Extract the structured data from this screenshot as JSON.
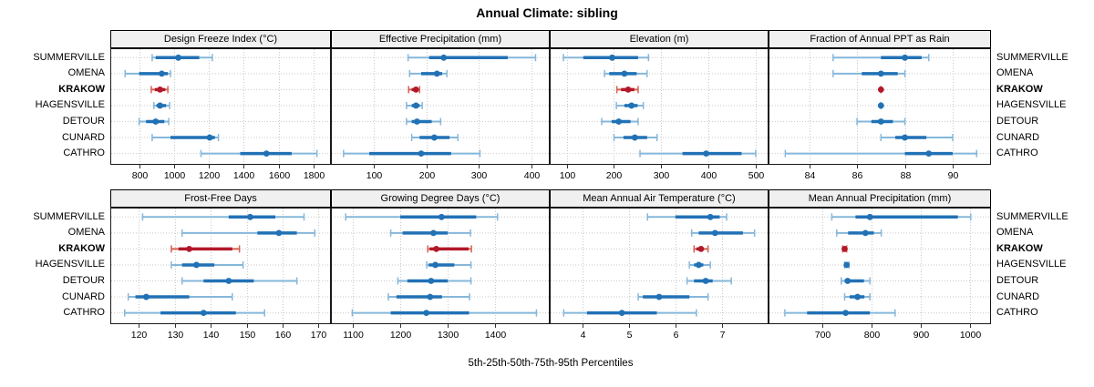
{
  "title": "Annual Climate: sibling",
  "caption": "5th-25th-50th-75th-95th Percentiles",
  "locations": [
    "SUMMERVILLE",
    "OMENA",
    "KRAKOW",
    "HAGENSVILLE",
    "DETOUR",
    "CUNARD",
    "CATHRO"
  ],
  "highlight_location": "KRAKOW",
  "colors": {
    "blue": "#2171b5",
    "blue_light": "#85b7da",
    "red": "#b2182b",
    "red_light": "#d6604d",
    "strip_bg": "#f0f0f0",
    "panel_border": "#1a1a1a",
    "grid": "#c9c9c9",
    "text": "#000000"
  },
  "chart_data": [
    {
      "type": "dotplot",
      "title": "Design Freeze Index (°C)",
      "row": 0,
      "col": 0,
      "percentiles": [
        5,
        25,
        50,
        75,
        95
      ],
      "xlim": [
        635,
        1900
      ],
      "ticks": [
        800,
        1000,
        1200,
        1400,
        1600,
        1800
      ],
      "series": [
        {
          "location": "SUMMERVILLE",
          "values": [
            875,
            895,
            1025,
            1145,
            1220
          ]
        },
        {
          "location": "OMENA",
          "values": [
            720,
            800,
            930,
            965,
            980
          ]
        },
        {
          "location": "KRAKOW",
          "values": [
            870,
            890,
            920,
            950,
            965
          ]
        },
        {
          "location": "HAGENSVILLE",
          "values": [
            885,
            900,
            920,
            955,
            975
          ]
        },
        {
          "location": "DETOUR",
          "values": [
            800,
            840,
            895,
            945,
            970
          ]
        },
        {
          "location": "CUNARD",
          "values": [
            875,
            980,
            1205,
            1235,
            1255
          ]
        },
        {
          "location": "CATHRO",
          "values": [
            1155,
            1380,
            1530,
            1675,
            1820
          ]
        }
      ]
    },
    {
      "type": "dotplot",
      "title": "Effective Precipitation (mm)",
      "row": 0,
      "col": 1,
      "percentiles": [
        5,
        25,
        50,
        75,
        95
      ],
      "xlim": [
        18,
        435
      ],
      "ticks": [
        100,
        200,
        300,
        400
      ],
      "series": [
        {
          "location": "SUMMERVILLE",
          "values": [
            165,
            205,
            233,
            355,
            408
          ]
        },
        {
          "location": "OMENA",
          "values": [
            168,
            190,
            220,
            230,
            239
          ]
        },
        {
          "location": "KRAKOW",
          "values": [
            166,
            172,
            180,
            184,
            187
          ]
        },
        {
          "location": "HAGENSVILLE",
          "values": [
            162,
            172,
            180,
            187,
            192
          ]
        },
        {
          "location": "DETOUR",
          "values": [
            162,
            172,
            182,
            210,
            227
          ]
        },
        {
          "location": "CUNARD",
          "values": [
            172,
            187,
            215,
            244,
            260
          ]
        },
        {
          "location": "CATHRO",
          "values": [
            42,
            91,
            190,
            247,
            302
          ]
        }
      ]
    },
    {
      "type": "dotplot",
      "title": "Elevation (m)",
      "row": 0,
      "col": 2,
      "percentiles": [
        5,
        25,
        50,
        75,
        95
      ],
      "xlim": [
        64,
        527
      ],
      "ticks": [
        100,
        200,
        300,
        400,
        500
      ],
      "series": [
        {
          "location": "SUMMERVILLE",
          "values": [
            93,
            135,
            196,
            251,
            273
          ]
        },
        {
          "location": "OMENA",
          "values": [
            180,
            190,
            222,
            248,
            270
          ]
        },
        {
          "location": "KRAKOW",
          "values": [
            206,
            215,
            230,
            243,
            251
          ]
        },
        {
          "location": "HAGENSVILLE",
          "values": [
            205,
            222,
            237,
            250,
            262
          ]
        },
        {
          "location": "DETOUR",
          "values": [
            174,
            195,
            210,
            235,
            251
          ]
        },
        {
          "location": "CUNARD",
          "values": [
            200,
            220,
            244,
            270,
            291
          ]
        },
        {
          "location": "CATHRO",
          "values": [
            255,
            345,
            395,
            470,
            500
          ]
        }
      ]
    },
    {
      "type": "dotplot",
      "title": "Fraction of Annual PPT as Rain",
      "row": 0,
      "col": 3,
      "percentiles": [
        5,
        25,
        50,
        75,
        95
      ],
      "xlim": [
        82.3,
        91.6
      ],
      "ticks": [
        84,
        86,
        88,
        90
      ],
      "series": [
        {
          "location": "SUMMERVILLE",
          "values": [
            85.0,
            87.0,
            88.0,
            88.7,
            89.0
          ]
        },
        {
          "location": "OMENA",
          "values": [
            85.0,
            86.2,
            87.0,
            87.7,
            88.0
          ]
        },
        {
          "location": "KRAKOW",
          "values": [
            87.0,
            87.0,
            87.0,
            87.0,
            87.0
          ]
        },
        {
          "location": "HAGENSVILLE",
          "values": [
            87.0,
            87.0,
            87.0,
            87.0,
            87.0
          ]
        },
        {
          "location": "DETOUR",
          "values": [
            86.0,
            86.6,
            87.0,
            87.5,
            88.0
          ]
        },
        {
          "location": "CUNARD",
          "values": [
            87.0,
            87.6,
            88.0,
            88.9,
            90.0
          ]
        },
        {
          "location": "CATHRO",
          "values": [
            83.0,
            88.0,
            89.0,
            90.0,
            91.0
          ]
        }
      ]
    },
    {
      "type": "dotplot",
      "title": "Frost-Free Days",
      "row": 1,
      "col": 0,
      "percentiles": [
        5,
        25,
        50,
        75,
        95
      ],
      "xlim": [
        112,
        173.5
      ],
      "ticks": [
        120,
        130,
        140,
        150,
        160,
        170
      ],
      "series": [
        {
          "location": "SUMMERVILLE",
          "values": [
            121,
            145,
            151,
            158,
            166
          ]
        },
        {
          "location": "OMENA",
          "values": [
            132,
            153,
            159,
            164,
            169
          ]
        },
        {
          "location": "KRAKOW",
          "values": [
            129,
            131,
            134,
            146,
            148
          ]
        },
        {
          "location": "HAGENSVILLE",
          "values": [
            129,
            132,
            136,
            141,
            149
          ]
        },
        {
          "location": "DETOUR",
          "values": [
            132,
            138,
            145,
            152,
            164
          ]
        },
        {
          "location": "CUNARD",
          "values": [
            117,
            119,
            122,
            134,
            146
          ]
        },
        {
          "location": "CATHRO",
          "values": [
            116,
            126,
            138,
            147,
            155
          ]
        }
      ]
    },
    {
      "type": "dotplot",
      "title": "Growing Degree Days (°C)",
      "row": 1,
      "col": 1,
      "percentiles": [
        5,
        25,
        50,
        75,
        95
      ],
      "xlim": [
        1054,
        1515
      ],
      "ticks": [
        1100,
        1200,
        1300,
        1400
      ],
      "series": [
        {
          "location": "SUMMERVILLE",
          "values": [
            1085,
            1200,
            1287,
            1360,
            1405
          ]
        },
        {
          "location": "OMENA",
          "values": [
            1180,
            1205,
            1270,
            1300,
            1348
          ]
        },
        {
          "location": "KRAKOW",
          "values": [
            1258,
            1262,
            1276,
            1344,
            1350
          ]
        },
        {
          "location": "HAGENSVILLE",
          "values": [
            1256,
            1260,
            1274,
            1314,
            1349
          ]
        },
        {
          "location": "DETOUR",
          "values": [
            1195,
            1215,
            1265,
            1300,
            1349
          ]
        },
        {
          "location": "CUNARD",
          "values": [
            1175,
            1192,
            1263,
            1288,
            1346
          ]
        },
        {
          "location": "CATHRO",
          "values": [
            1099,
            1180,
            1255,
            1345,
            1487
          ]
        }
      ]
    },
    {
      "type": "dotplot",
      "title": "Mean Annual Air Temperature (°C)",
      "row": 1,
      "col": 2,
      "percentiles": [
        5,
        25,
        50,
        75,
        95
      ],
      "xlim": [
        3.3,
        8.0
      ],
      "ticks": [
        4,
        5,
        6,
        7
      ],
      "series": [
        {
          "location": "SUMMERVILLE",
          "values": [
            5.4,
            6.0,
            6.75,
            6.95,
            7.1
          ]
        },
        {
          "location": "OMENA",
          "values": [
            6.35,
            6.5,
            6.85,
            7.45,
            7.7
          ]
        },
        {
          "location": "KRAKOW",
          "values": [
            6.4,
            6.45,
            6.55,
            6.6,
            6.7
          ]
        },
        {
          "location": "HAGENSVILLE",
          "values": [
            6.3,
            6.4,
            6.5,
            6.6,
            6.75
          ]
        },
        {
          "location": "DETOUR",
          "values": [
            6.25,
            6.4,
            6.65,
            6.8,
            7.2
          ]
        },
        {
          "location": "CUNARD",
          "values": [
            5.2,
            5.3,
            5.65,
            6.3,
            6.7
          ]
        },
        {
          "location": "CATHRO",
          "values": [
            3.6,
            4.1,
            4.85,
            5.6,
            6.45
          ]
        }
      ]
    },
    {
      "type": "dotplot",
      "title": "Mean Annual Precipitation (mm)",
      "row": 1,
      "col": 3,
      "percentiles": [
        5,
        25,
        50,
        75,
        95
      ],
      "xlim": [
        592,
        1042
      ],
      "ticks": [
        700,
        800,
        900,
        1000
      ],
      "series": [
        {
          "location": "SUMMERVILLE",
          "values": [
            720,
            768,
            797,
            975,
            1001
          ]
        },
        {
          "location": "OMENA",
          "values": [
            730,
            753,
            788,
            805,
            820
          ]
        },
        {
          "location": "KRAKOW",
          "values": [
            742,
            744,
            746,
            748,
            750
          ]
        },
        {
          "location": "HAGENSVILLE",
          "values": [
            746,
            748,
            750,
            752,
            755
          ]
        },
        {
          "location": "DETOUR",
          "values": [
            739,
            746,
            752,
            785,
            797
          ]
        },
        {
          "location": "CUNARD",
          "values": [
            746,
            756,
            772,
            786,
            797
          ]
        },
        {
          "location": "CATHRO",
          "values": [
            625,
            670,
            748,
            797,
            848
          ]
        }
      ]
    }
  ]
}
